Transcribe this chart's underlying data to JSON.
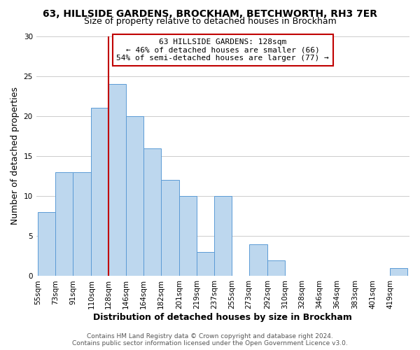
{
  "title": "63, HILLSIDE GARDENS, BROCKHAM, BETCHWORTH, RH3 7ER",
  "subtitle": "Size of property relative to detached houses in Brockham",
  "xlabel": "Distribution of detached houses by size in Brockham",
  "ylabel": "Number of detached properties",
  "bin_labels": [
    "55sqm",
    "73sqm",
    "91sqm",
    "110sqm",
    "128sqm",
    "146sqm",
    "164sqm",
    "182sqm",
    "201sqm",
    "219sqm",
    "237sqm",
    "255sqm",
    "273sqm",
    "292sqm",
    "310sqm",
    "328sqm",
    "346sqm",
    "364sqm",
    "383sqm",
    "401sqm",
    "419sqm"
  ],
  "bin_left_edges": [
    55,
    73,
    91,
    110,
    128,
    146,
    164,
    182,
    201,
    219,
    237,
    255,
    273,
    292,
    310,
    328,
    346,
    364,
    383,
    401,
    419
  ],
  "bin_widths": [
    18,
    18,
    19,
    18,
    18,
    18,
    18,
    19,
    18,
    18,
    18,
    18,
    19,
    18,
    18,
    18,
    18,
    19,
    18,
    18,
    18
  ],
  "bar_heights": [
    8,
    13,
    13,
    21,
    24,
    20,
    16,
    12,
    10,
    3,
    10,
    0,
    4,
    2,
    0,
    0,
    0,
    0,
    0,
    0,
    1
  ],
  "bar_color": "#BDD7EE",
  "bar_edge_color": "#5B9BD5",
  "ylim": [
    0,
    30
  ],
  "yticks": [
    0,
    5,
    10,
    15,
    20,
    25,
    30
  ],
  "property_value": 128,
  "vline_color": "#C00000",
  "annotation_text": "63 HILLSIDE GARDENS: 128sqm\n← 46% of detached houses are smaller (66)\n54% of semi-detached houses are larger (77) →",
  "annotation_box_color": "#FFFFFF",
  "annotation_box_edge": "#C00000",
  "footer_line1": "Contains HM Land Registry data © Crown copyright and database right 2024.",
  "footer_line2": "Contains public sector information licensed under the Open Government Licence v3.0.",
  "background_color": "#FFFFFF",
  "grid_color": "#CCCCCC",
  "title_fontsize": 10,
  "subtitle_fontsize": 9,
  "axis_label_fontsize": 9,
  "tick_fontsize": 7.5,
  "annotation_fontsize": 8,
  "footer_fontsize": 6.5
}
